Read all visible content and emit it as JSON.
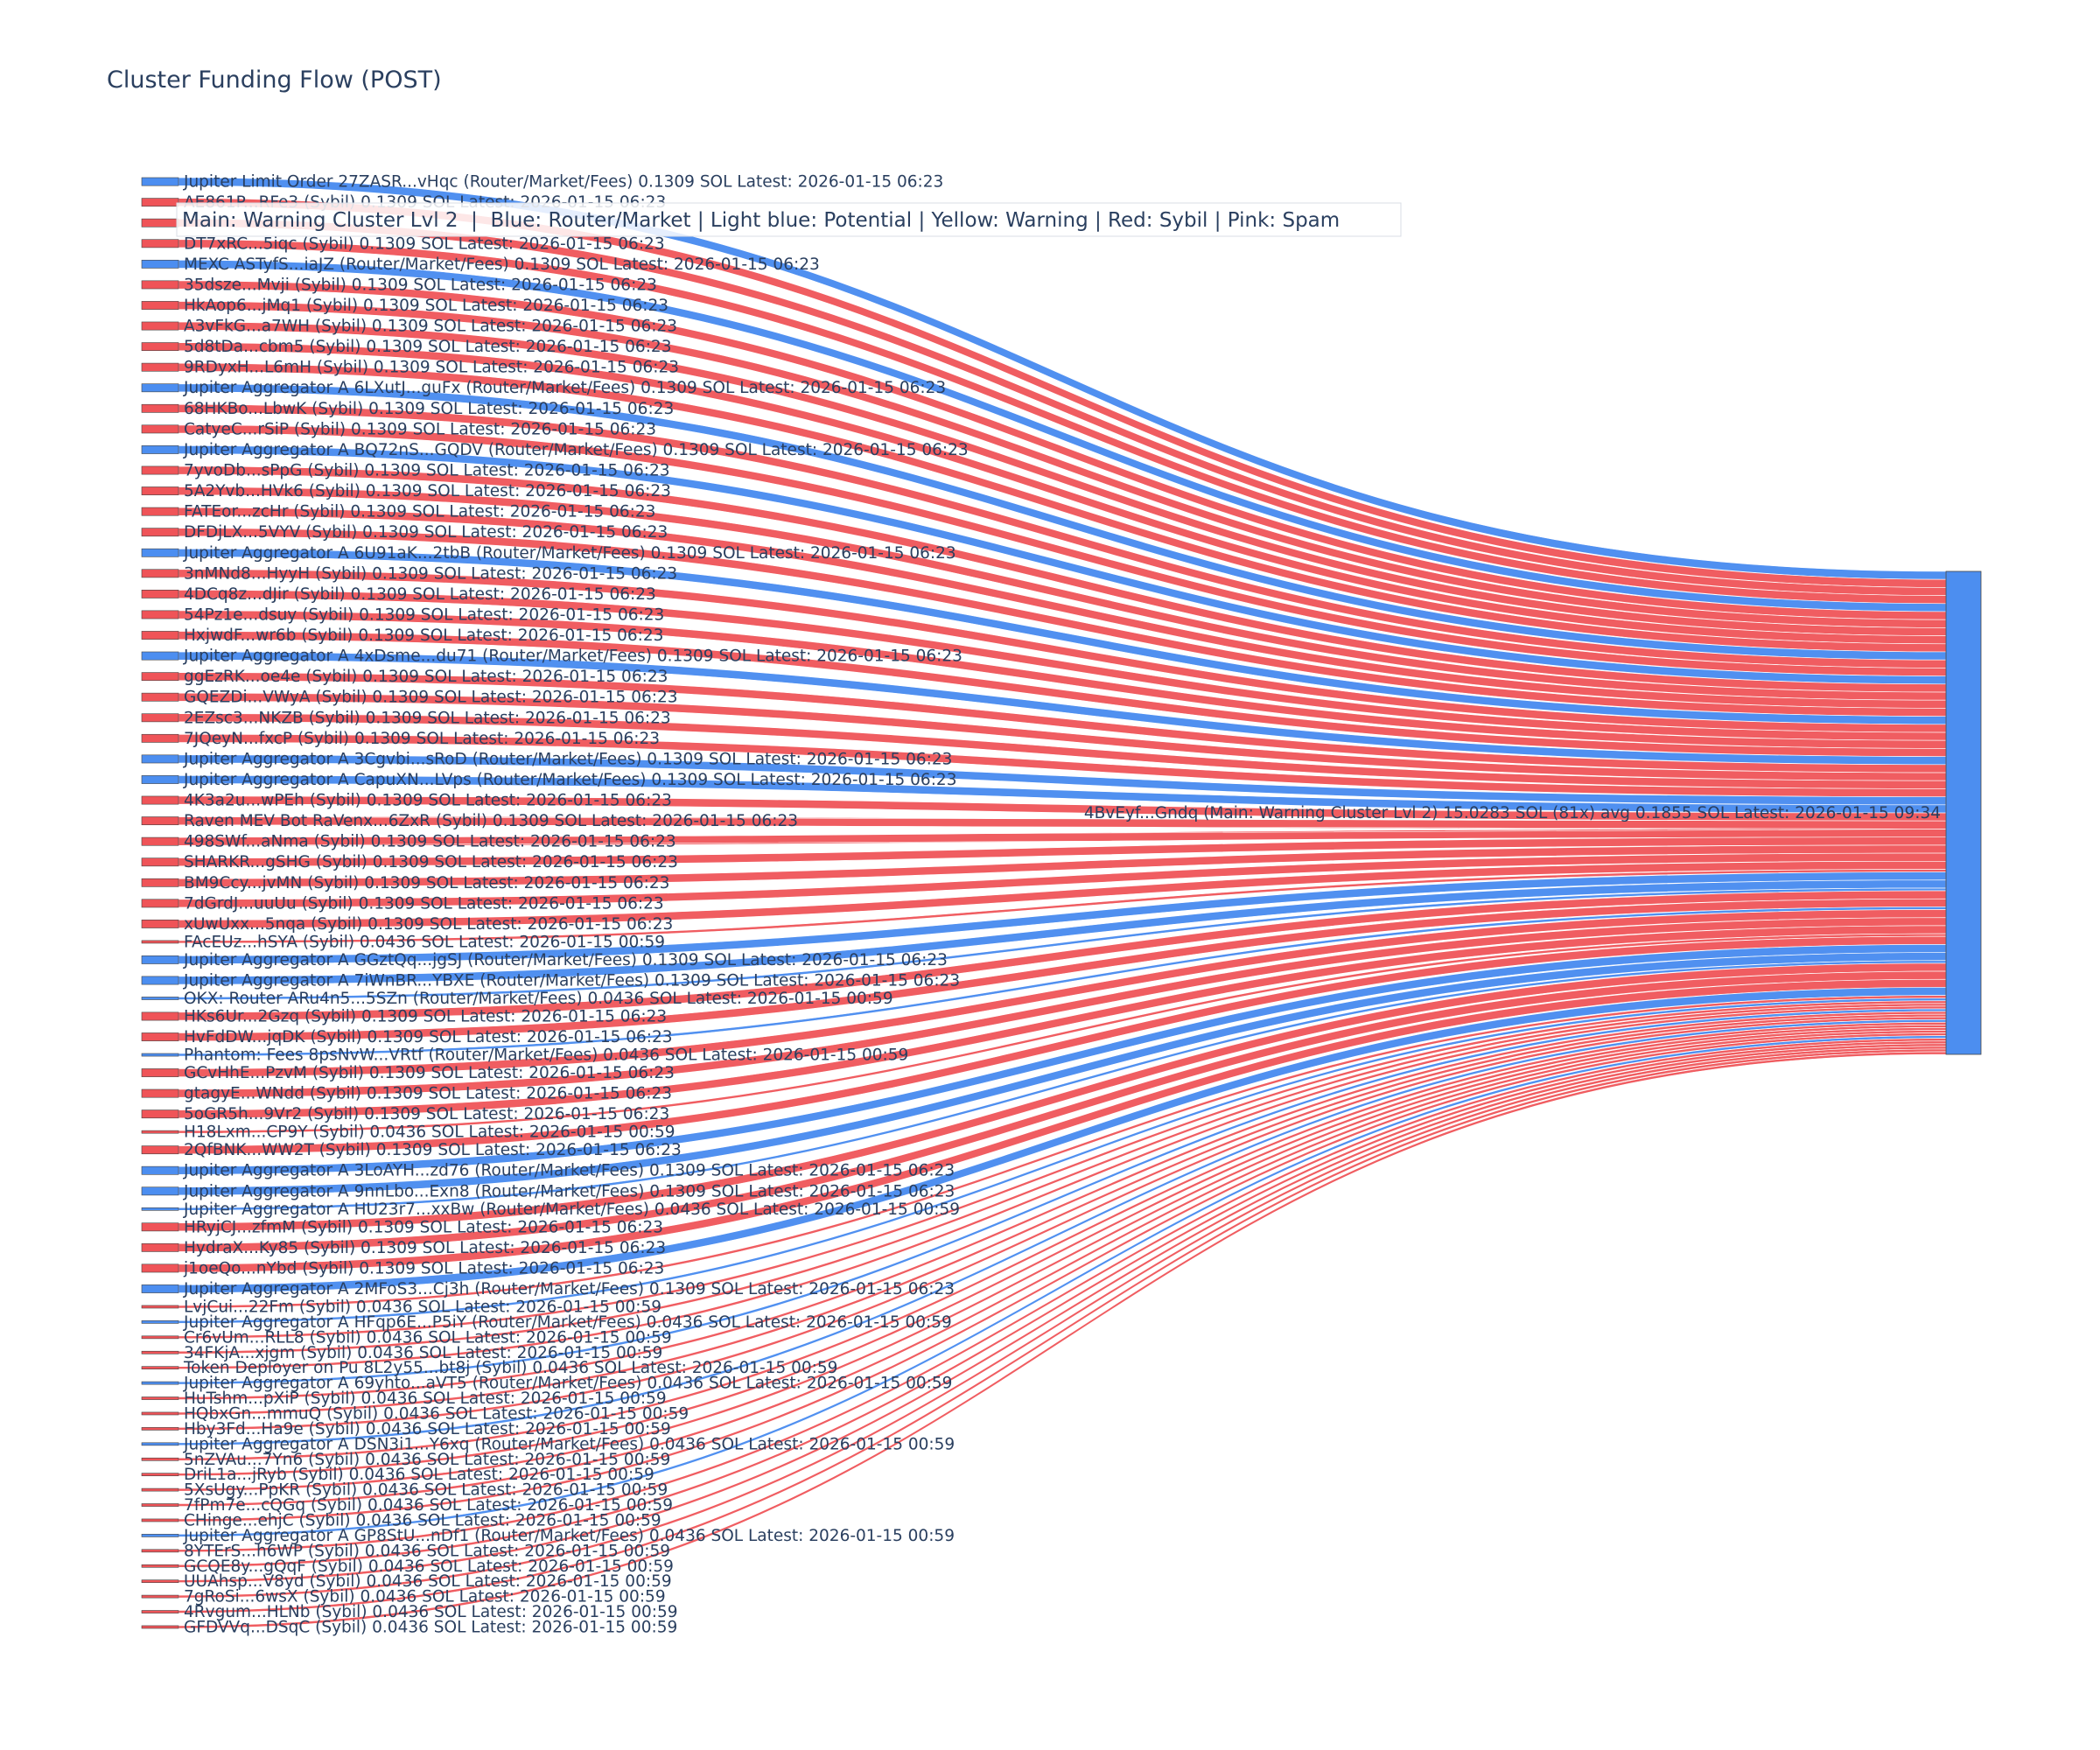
{
  "colors": {
    "router": "#4c8ef0",
    "sybil": "#ef5458",
    "main": "#4c8ef0",
    "link_router": "#4c8ef0",
    "link_sybil": "#ef5458"
  },
  "chart_data": {
    "type": "sankey",
    "title": "Cluster Funding Flow (POST)",
    "legend": "Main: Warning Cluster Lvl 2  |  Blue: Router/Market | Light blue: Potential | Yellow: Warning | Red: Sybil | Pink: Spam",
    "target": {
      "label": "4BvEyf...Gndq (Main: Warning Cluster Lvl 2) 15.0283 SOL (81x) avg 0.1855 SOL Latest: 2026-01-15 09:34",
      "kind": "main"
    },
    "sources": [
      {
        "label": "Jupiter Limit Order 27ZASR...vHqc (Router/Market/Fees) 0.1309 SOL Latest: 2026-01-15 06:23",
        "kind": "router",
        "value": 0.1309
      },
      {
        "label": "AE861P...RFe3 (Sybil) 0.1309 SOL Latest: 2026-01-15 06:23",
        "kind": "sybil",
        "value": 0.1309
      },
      {
        "label": "",
        "kind": "sybil",
        "value": 0.1309
      },
      {
        "label": "DT7xRC...5iqc (Sybil) 0.1309 SOL Latest: 2026-01-15 06:23",
        "kind": "sybil",
        "value": 0.1309
      },
      {
        "label": "MEXC ASTyfS...iaJZ (Router/Market/Fees) 0.1309 SOL Latest: 2026-01-15 06:23",
        "kind": "router",
        "value": 0.1309
      },
      {
        "label": "35dsze...Mvji (Sybil) 0.1309 SOL Latest: 2026-01-15 06:23",
        "kind": "sybil",
        "value": 0.1309
      },
      {
        "label": "HkAop6...jMq1 (Sybil) 0.1309 SOL Latest: 2026-01-15 06:23",
        "kind": "sybil",
        "value": 0.1309
      },
      {
        "label": "A3vFkG...a7WH (Sybil) 0.1309 SOL Latest: 2026-01-15 06:23",
        "kind": "sybil",
        "value": 0.1309
      },
      {
        "label": "5d8tDa...cbm5 (Sybil) 0.1309 SOL Latest: 2026-01-15 06:23",
        "kind": "sybil",
        "value": 0.1309
      },
      {
        "label": "9RDyxH...L6mH (Sybil) 0.1309 SOL Latest: 2026-01-15 06:23",
        "kind": "sybil",
        "value": 0.1309
      },
      {
        "label": "Jupiter Aggregator A 6LXutJ...guFx (Router/Market/Fees) 0.1309 SOL Latest: 2026-01-15 06:23",
        "kind": "router",
        "value": 0.1309
      },
      {
        "label": "68HKBo...LbwK (Sybil) 0.1309 SOL Latest: 2026-01-15 06:23",
        "kind": "sybil",
        "value": 0.1309
      },
      {
        "label": "CatyeC...rSiP (Sybil) 0.1309 SOL Latest: 2026-01-15 06:23",
        "kind": "sybil",
        "value": 0.1309
      },
      {
        "label": "Jupiter Aggregator A BQ72nS...GQDV (Router/Market/Fees) 0.1309 SOL Latest: 2026-01-15 06:23",
        "kind": "router",
        "value": 0.1309
      },
      {
        "label": "7yvoDb...sPpG (Sybil) 0.1309 SOL Latest: 2026-01-15 06:23",
        "kind": "sybil",
        "value": 0.1309
      },
      {
        "label": "5A2Yvb...HVk6 (Sybil) 0.1309 SOL Latest: 2026-01-15 06:23",
        "kind": "sybil",
        "value": 0.1309
      },
      {
        "label": "FATEor...zcHr (Sybil) 0.1309 SOL Latest: 2026-01-15 06:23",
        "kind": "sybil",
        "value": 0.1309
      },
      {
        "label": "DFDjLX...5VYV (Sybil) 0.1309 SOL Latest: 2026-01-15 06:23",
        "kind": "sybil",
        "value": 0.1309
      },
      {
        "label": "Jupiter Aggregator A 6U91aK...2tbB (Router/Market/Fees) 0.1309 SOL Latest: 2026-01-15 06:23",
        "kind": "router",
        "value": 0.1309
      },
      {
        "label": "3nMNd8...HyyH (Sybil) 0.1309 SOL Latest: 2026-01-15 06:23",
        "kind": "sybil",
        "value": 0.1309
      },
      {
        "label": "4DCq8z...dJir (Sybil) 0.1309 SOL Latest: 2026-01-15 06:23",
        "kind": "sybil",
        "value": 0.1309
      },
      {
        "label": "54Pz1e...dsuy (Sybil) 0.1309 SOL Latest: 2026-01-15 06:23",
        "kind": "sybil",
        "value": 0.1309
      },
      {
        "label": "HxjwdF...wr6b (Sybil) 0.1309 SOL Latest: 2026-01-15 06:23",
        "kind": "sybil",
        "value": 0.1309
      },
      {
        "label": "Jupiter Aggregator A 4xDsme...du71 (Router/Market/Fees) 0.1309 SOL Latest: 2026-01-15 06:23",
        "kind": "router",
        "value": 0.1309
      },
      {
        "label": "ggEzRK...oe4e (Sybil) 0.1309 SOL Latest: 2026-01-15 06:23",
        "kind": "sybil",
        "value": 0.1309
      },
      {
        "label": "GQEZDi...VWyA (Sybil) 0.1309 SOL Latest: 2026-01-15 06:23",
        "kind": "sybil",
        "value": 0.1309
      },
      {
        "label": "2EZsc3...NKZB (Sybil) 0.1309 SOL Latest: 2026-01-15 06:23",
        "kind": "sybil",
        "value": 0.1309
      },
      {
        "label": "7JQeyN...fxcP (Sybil) 0.1309 SOL Latest: 2026-01-15 06:23",
        "kind": "sybil",
        "value": 0.1309
      },
      {
        "label": "Jupiter Aggregator A 3Cgvbi...sRoD (Router/Market/Fees) 0.1309 SOL Latest: 2026-01-15 06:23",
        "kind": "router",
        "value": 0.1309
      },
      {
        "label": "Jupiter Aggregator A CapuXN...LVps (Router/Market/Fees) 0.1309 SOL Latest: 2026-01-15 06:23",
        "kind": "router",
        "value": 0.1309
      },
      {
        "label": "4K3a2u...wPEh (Sybil) 0.1309 SOL Latest: 2026-01-15 06:23",
        "kind": "sybil",
        "value": 0.1309
      },
      {
        "label": "Raven MEV Bot RaVenx...6ZxR (Sybil) 0.1309 SOL Latest: 2026-01-15 06:23",
        "kind": "sybil",
        "value": 0.1309
      },
      {
        "label": "498SWf...aNma (Sybil) 0.1309 SOL Latest: 2026-01-15 06:23",
        "kind": "sybil",
        "value": 0.1309
      },
      {
        "label": "SHARKR...gSHG (Sybil) 0.1309 SOL Latest: 2026-01-15 06:23",
        "kind": "sybil",
        "value": 0.1309
      },
      {
        "label": "BM9Ccy...jvMN (Sybil) 0.1309 SOL Latest: 2026-01-15 06:23",
        "kind": "sybil",
        "value": 0.1309
      },
      {
        "label": "7dGrdJ...uuUu (Sybil) 0.1309 SOL Latest: 2026-01-15 06:23",
        "kind": "sybil",
        "value": 0.1309
      },
      {
        "label": "xUwUxx...5nqa (Sybil) 0.1309 SOL Latest: 2026-01-15 06:23",
        "kind": "sybil",
        "value": 0.1309
      },
      {
        "label": "FAcEUz...hSYA (Sybil) 0.0436 SOL Latest: 2026-01-15 00:59",
        "kind": "sybil",
        "value": 0.0436
      },
      {
        "label": "Jupiter Aggregator A GGztQq...jgSJ (Router/Market/Fees) 0.1309 SOL Latest: 2026-01-15 06:23",
        "kind": "router",
        "value": 0.1309
      },
      {
        "label": "Jupiter Aggregator A 7iWnBR...YBXE (Router/Market/Fees) 0.1309 SOL Latest: 2026-01-15 06:23",
        "kind": "router",
        "value": 0.1309
      },
      {
        "label": "OKX: Router ARu4n5...5SZn (Router/Market/Fees) 0.0436 SOL Latest: 2026-01-15 00:59",
        "kind": "router",
        "value": 0.0436
      },
      {
        "label": "HKs6Ur...2Gzq (Sybil) 0.1309 SOL Latest: 2026-01-15 06:23",
        "kind": "sybil",
        "value": 0.1309
      },
      {
        "label": "HvFdDW...jqDK (Sybil) 0.1309 SOL Latest: 2026-01-15 06:23",
        "kind": "sybil",
        "value": 0.1309
      },
      {
        "label": "Phantom: Fees 8psNvW...VRtf (Router/Market/Fees) 0.0436 SOL Latest: 2026-01-15 00:59",
        "kind": "router",
        "value": 0.0436
      },
      {
        "label": "GCvHhE...PzvM (Sybil) 0.1309 SOL Latest: 2026-01-15 06:23",
        "kind": "sybil",
        "value": 0.1309
      },
      {
        "label": "gtagyE...WNdd (Sybil) 0.1309 SOL Latest: 2026-01-15 06:23",
        "kind": "sybil",
        "value": 0.1309
      },
      {
        "label": "5oGR5h...9Vr2 (Sybil) 0.1309 SOL Latest: 2026-01-15 06:23",
        "kind": "sybil",
        "value": 0.1309
      },
      {
        "label": "H18Lxm...CP9Y (Sybil) 0.0436 SOL Latest: 2026-01-15 00:59",
        "kind": "sybil",
        "value": 0.0436
      },
      {
        "label": "2QfBNK...WW2T (Sybil) 0.1309 SOL Latest: 2026-01-15 06:23",
        "kind": "sybil",
        "value": 0.1309
      },
      {
        "label": "Jupiter Aggregator A 3LoAYH...zd76 (Router/Market/Fees) 0.1309 SOL Latest: 2026-01-15 06:23",
        "kind": "router",
        "value": 0.1309
      },
      {
        "label": "Jupiter Aggregator A 9nnLbo...Exn8 (Router/Market/Fees) 0.1309 SOL Latest: 2026-01-15 06:23",
        "kind": "router",
        "value": 0.1309
      },
      {
        "label": "Jupiter Aggregator A HU23r7...xxBw (Router/Market/Fees) 0.0436 SOL Latest: 2026-01-15 00:59",
        "kind": "router",
        "value": 0.0436
      },
      {
        "label": "HRyjCJ...zfmM (Sybil) 0.1309 SOL Latest: 2026-01-15 06:23",
        "kind": "sybil",
        "value": 0.1309
      },
      {
        "label": "HydraX...Ky85 (Sybil) 0.1309 SOL Latest: 2026-01-15 06:23",
        "kind": "sybil",
        "value": 0.1309
      },
      {
        "label": "j1oeQo...nYbd (Sybil) 0.1309 SOL Latest: 2026-01-15 06:23",
        "kind": "sybil",
        "value": 0.1309
      },
      {
        "label": "Jupiter Aggregator A 2MFoS3...Cj3h (Router/Market/Fees) 0.1309 SOL Latest: 2026-01-15 06:23",
        "kind": "router",
        "value": 0.1309
      },
      {
        "label": "LvjCui...22Fm (Sybil) 0.0436 SOL Latest: 2026-01-15 00:59",
        "kind": "sybil",
        "value": 0.0436
      },
      {
        "label": "Jupiter Aggregator A HFqp6E...P5iY (Router/Market/Fees) 0.0436 SOL Latest: 2026-01-15 00:59",
        "kind": "router",
        "value": 0.0436
      },
      {
        "label": "Cr6vUm...RLL8 (Sybil) 0.0436 SOL Latest: 2026-01-15 00:59",
        "kind": "sybil",
        "value": 0.0436
      },
      {
        "label": "34FKjA...xjgm (Sybil) 0.0436 SOL Latest: 2026-01-15 00:59",
        "kind": "sybil",
        "value": 0.0436
      },
      {
        "label": "Token Deployer on Pu 8L2y55...bt8j (Sybil) 0.0436 SOL Latest: 2026-01-15 00:59",
        "kind": "sybil",
        "value": 0.0436
      },
      {
        "label": "Jupiter Aggregator A 69yhto...aVT5 (Router/Market/Fees) 0.0436 SOL Latest: 2026-01-15 00:59",
        "kind": "router",
        "value": 0.0436
      },
      {
        "label": "HuTshm...pXiP (Sybil) 0.0436 SOL Latest: 2026-01-15 00:59",
        "kind": "sybil",
        "value": 0.0436
      },
      {
        "label": "HQbxGn...mmuQ (Sybil) 0.0436 SOL Latest: 2026-01-15 00:59",
        "kind": "sybil",
        "value": 0.0436
      },
      {
        "label": "Hby3Fd...Ha9e (Sybil) 0.0436 SOL Latest: 2026-01-15 00:59",
        "kind": "sybil",
        "value": 0.0436
      },
      {
        "label": "Jupiter Aggregator A DSN3i1...Y6xq (Router/Market/Fees) 0.0436 SOL Latest: 2026-01-15 00:59",
        "kind": "router",
        "value": 0.0436
      },
      {
        "label": "5nZVAu...7Yn6 (Sybil) 0.0436 SOL Latest: 2026-01-15 00:59",
        "kind": "sybil",
        "value": 0.0436
      },
      {
        "label": "DriL1a...jRyb (Sybil) 0.0436 SOL Latest: 2026-01-15 00:59",
        "kind": "sybil",
        "value": 0.0436
      },
      {
        "label": "5XsUgy...PpKR (Sybil) 0.0436 SOL Latest: 2026-01-15 00:59",
        "kind": "sybil",
        "value": 0.0436
      },
      {
        "label": "7fPm7e...cQGq (Sybil) 0.0436 SOL Latest: 2026-01-15 00:59",
        "kind": "sybil",
        "value": 0.0436
      },
      {
        "label": "CHinge...ehjC (Sybil) 0.0436 SOL Latest: 2026-01-15 00:59",
        "kind": "sybil",
        "value": 0.0436
      },
      {
        "label": "Jupiter Aggregator A GP8StU...nDf1 (Router/Market/Fees) 0.0436 SOL Latest: 2026-01-15 00:59",
        "kind": "router",
        "value": 0.0436
      },
      {
        "label": "8YTErS...h6WP (Sybil) 0.0436 SOL Latest: 2026-01-15 00:59",
        "kind": "sybil",
        "value": 0.0436
      },
      {
        "label": "GCQE8y...gQqF (Sybil) 0.0436 SOL Latest: 2026-01-15 00:59",
        "kind": "sybil",
        "value": 0.0436
      },
      {
        "label": "UUAhsp...V8yd (Sybil) 0.0436 SOL Latest: 2026-01-15 00:59",
        "kind": "sybil",
        "value": 0.0436
      },
      {
        "label": "7gRoSi...6wsX (Sybil) 0.0436 SOL Latest: 2026-01-15 00:59",
        "kind": "sybil",
        "value": 0.0436
      },
      {
        "label": "4Rvgum...HLNb (Sybil) 0.0436 SOL Latest: 2026-01-15 00:59",
        "kind": "sybil",
        "value": 0.0436
      },
      {
        "label": "GFDVVq...DSqC (Sybil) 0.0436 SOL Latest: 2026-01-15 00:59",
        "kind": "sybil",
        "value": 0.0436
      }
    ]
  }
}
